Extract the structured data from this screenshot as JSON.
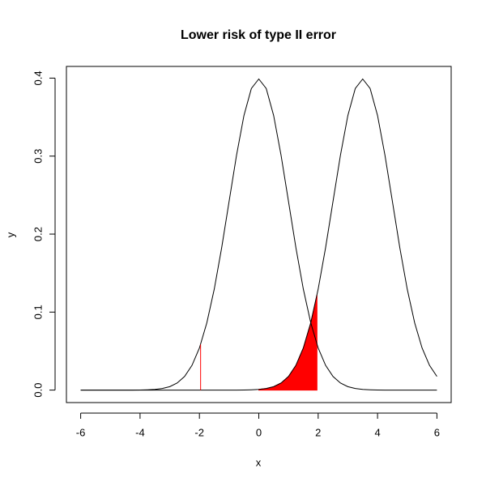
{
  "chart_data": {
    "type": "line",
    "title": "Lower risk of type II error",
    "x_label": "x",
    "y_label": "y",
    "xlim": [
      -6.48,
      6.48
    ],
    "ylim": [
      -0.016,
      0.415
    ],
    "xticks": [
      -6,
      -4,
      -2,
      0,
      2,
      4,
      6
    ],
    "yticks": [
      {
        "value": 0,
        "label": "0.0"
      },
      0.1,
      0.2,
      0.3,
      0.4
    ],
    "x": [
      -6,
      -5.75,
      -5.5,
      -5.25,
      -5,
      -4.75,
      -4.5,
      -4.25,
      -4,
      -3.75,
      -3.5,
      -3.25,
      -3,
      -2.75,
      -2.5,
      -2.25,
      -2,
      -1.75,
      -1.5,
      -1.25,
      -1,
      -0.75,
      -0.5,
      -0.25,
      0,
      0.25,
      0.5,
      0.75,
      1,
      1.25,
      1.5,
      1.75,
      2,
      2.25,
      2.5,
      2.75,
      3,
      3.25,
      3.5,
      3.75,
      4,
      4.25,
      4.5,
      4.75,
      5,
      5.25,
      5.5,
      5.75,
      6
    ],
    "series": [
      {
        "color": "#000000",
        "values": [
          0,
          0,
          0,
          0,
          0,
          0,
          0,
          0,
          0.0001,
          0.0004,
          0.0009,
          0.002,
          0.0044,
          0.0091,
          0.0175,
          0.0317,
          0.054,
          0.0863,
          0.1295,
          0.1826,
          0.242,
          0.3011,
          0.3521,
          0.3867,
          0.3989,
          0.3867,
          0.3521,
          0.3011,
          0.242,
          0.1826,
          0.1295,
          0.0863,
          0.054,
          0.0317,
          0.0175,
          0.0091,
          0.0044,
          0.002,
          0.0009,
          0.0004,
          0.0001,
          0,
          0,
          0,
          0,
          0,
          0,
          0,
          0
        ]
      },
      {
        "color": "#000000",
        "values": [
          0,
          0,
          0,
          0,
          0,
          0,
          0,
          0,
          0,
          0,
          0,
          0,
          0,
          0,
          0,
          0,
          0,
          0,
          0,
          0,
          0,
          0,
          0.0001,
          0.0004,
          0.0009,
          0.002,
          0.0044,
          0.0091,
          0.0175,
          0.0317,
          0.054,
          0.0863,
          0.1295,
          0.1826,
          0.242,
          0.3011,
          0.3521,
          0.3867,
          0.3989,
          0.3867,
          0.3521,
          0.3011,
          0.242,
          0.1826,
          0.1295,
          0.0863,
          0.054,
          0.0317,
          0.0175
        ]
      }
    ],
    "shade": {
      "color": "#ff0000",
      "x": [
        0,
        0.25,
        0.5,
        0.75,
        1,
        1.25,
        1.5,
        1.75,
        1.96
      ],
      "values": [
        0.0009,
        0.002,
        0.0044,
        0.0091,
        0.0175,
        0.0317,
        0.054,
        0.0863,
        0.1219
      ]
    },
    "critical_line": {
      "color": "#ff0000",
      "x": -1.96,
      "value": 0.0584
    }
  }
}
